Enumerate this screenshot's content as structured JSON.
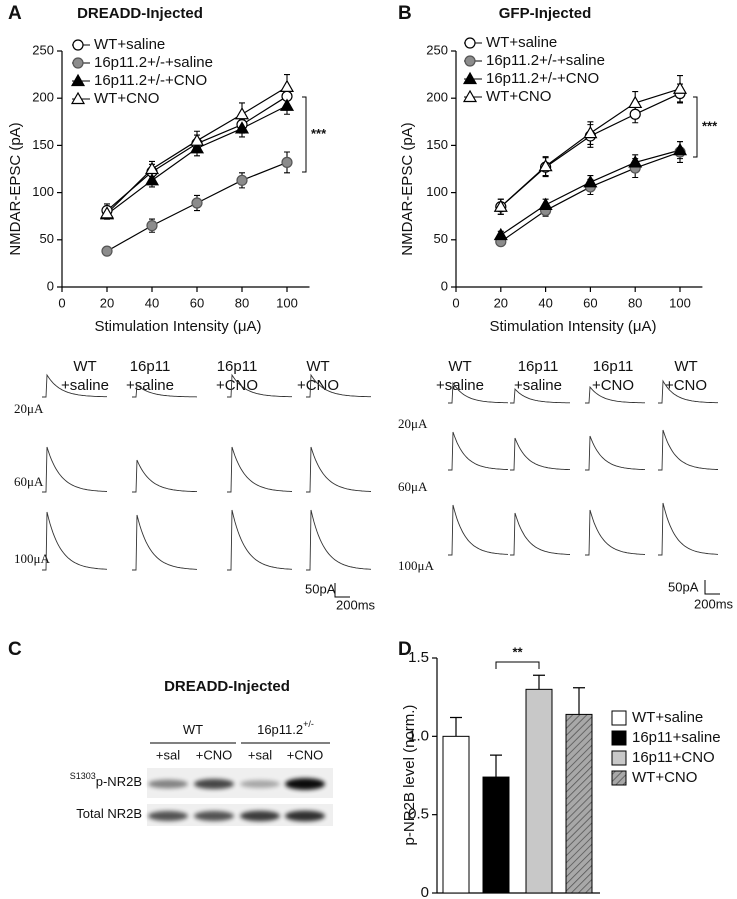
{
  "panels": [
    "A",
    "B",
    "C",
    "D"
  ],
  "chart_data": [
    {
      "type": "line",
      "title": "DREADD-Injected",
      "x_label": "Stimulation Intensity (μA)",
      "y_label": "NMDAR-EPSC (pA)",
      "x": [
        20,
        40,
        60,
        80,
        100
      ],
      "xlim": [
        0,
        110
      ],
      "xticks": [
        0,
        20,
        40,
        60,
        80,
        100
      ],
      "ylim": [
        0,
        250
      ],
      "yticks": [
        0,
        50,
        100,
        150,
        200,
        250
      ],
      "significance": "***",
      "series": [
        {
          "name": "WT+saline",
          "marker": "circle",
          "color": "#ffffff",
          "values": [
            81,
            122,
            152,
            172,
            202
          ],
          "errors": [
            7,
            8,
            9,
            9,
            10
          ]
        },
        {
          "name": "16p11.2+/-+saline",
          "marker": "circle",
          "color": "#8c8c8c",
          "values": [
            38,
            65,
            89,
            113,
            132
          ],
          "errors": [
            4,
            7,
            8,
            8,
            11
          ]
        },
        {
          "name": "16p11.2+/-+CNO",
          "marker": "triangle",
          "color": "#000000",
          "values": [
            77,
            113,
            147,
            168,
            192
          ],
          "errors": [
            5,
            7,
            8,
            9,
            9
          ]
        },
        {
          "name": "WT+CNO",
          "marker": "triangle",
          "color": "#ffffff",
          "values": [
            78,
            125,
            155,
            183,
            212
          ],
          "errors": [
            6,
            8,
            10,
            12,
            13
          ]
        }
      ]
    },
    {
      "type": "line",
      "title": "GFP-Injected",
      "x_label": "Stimulation Intensity (μA)",
      "y_label": "NMDAR-EPSC (pA)",
      "x": [
        20,
        40,
        60,
        80,
        100
      ],
      "xlim": [
        0,
        110
      ],
      "xticks": [
        0,
        20,
        40,
        60,
        80,
        100
      ],
      "ylim": [
        0,
        250
      ],
      "yticks": [
        0,
        50,
        100,
        150,
        200,
        250
      ],
      "significance": "***",
      "series": [
        {
          "name": "WT+saline",
          "marker": "circle",
          "color": "#ffffff",
          "values": [
            85,
            127,
            160,
            183,
            205
          ],
          "errors": [
            8,
            10,
            12,
            9,
            10
          ]
        },
        {
          "name": "16p11.2+/-+saline",
          "marker": "circle",
          "color": "#8c8c8c",
          "values": [
            48,
            81,
            106,
            126,
            143
          ],
          "errors": [
            4,
            6,
            8,
            10,
            11
          ]
        },
        {
          "name": "16p11.2+/-+CNO",
          "marker": "triangle",
          "color": "#000000",
          "values": [
            55,
            87,
            111,
            132,
            145
          ],
          "errors": [
            4,
            6,
            7,
            8,
            9
          ]
        },
        {
          "name": "WT+CNO",
          "marker": "triangle",
          "color": "#ffffff",
          "values": [
            85,
            128,
            163,
            195,
            210
          ],
          "errors": [
            8,
            10,
            12,
            12,
            14
          ]
        }
      ]
    },
    {
      "type": "bar",
      "y_label": "p-NR2B level (norm.)",
      "categories": [
        "WT+saline",
        "16p11+saline",
        "16p11+CNO",
        "WT+CNO"
      ],
      "values": [
        1.0,
        0.74,
        1.3,
        1.14
      ],
      "errors": [
        0.12,
        0.14,
        0.09,
        0.17
      ],
      "colors": [
        "#ffffff",
        "#000000",
        "#c8c8c8",
        "#9a9a9a"
      ],
      "hatched": [
        false,
        false,
        false,
        true
      ],
      "ylim": [
        0,
        1.5
      ],
      "yticks": [
        0,
        0.5,
        {
          "value": 1,
          "label": "1.0"
        },
        1.5
      ],
      "significance": "**"
    }
  ],
  "traces": [
    {
      "columns": [
        [
          "WT",
          "+saline"
        ],
        [
          "16p11",
          "+saline"
        ],
        [
          "16p11",
          "+CNO"
        ],
        [
          "WT",
          "+CNO"
        ]
      ],
      "rows": [
        "20μA",
        "60μA",
        "100μA"
      ],
      "scale": {
        "y": "50pA",
        "x": "200ms"
      }
    },
    {
      "columns": [
        [
          "WT",
          "+saline"
        ],
        [
          "16p11",
          "+saline"
        ],
        [
          "16p11",
          "+CNO"
        ],
        [
          "WT",
          "+CNO"
        ]
      ],
      "rows": [
        "20μA",
        "60μA",
        "100μA"
      ],
      "scale": {
        "y": "50pA",
        "x": "200ms"
      }
    }
  ],
  "blot": {
    "title": "DREADD-Injected",
    "groups": [
      {
        "label": "WT"
      },
      {
        "label": "16p11.2",
        "sup": "+/-"
      }
    ],
    "lanes": [
      "+sal",
      "+CNO",
      "+sal",
      "+CNO"
    ],
    "rows": [
      {
        "sup": "S1303",
        "label": "p-NR2B"
      },
      {
        "label": "Total NR2B"
      }
    ]
  }
}
